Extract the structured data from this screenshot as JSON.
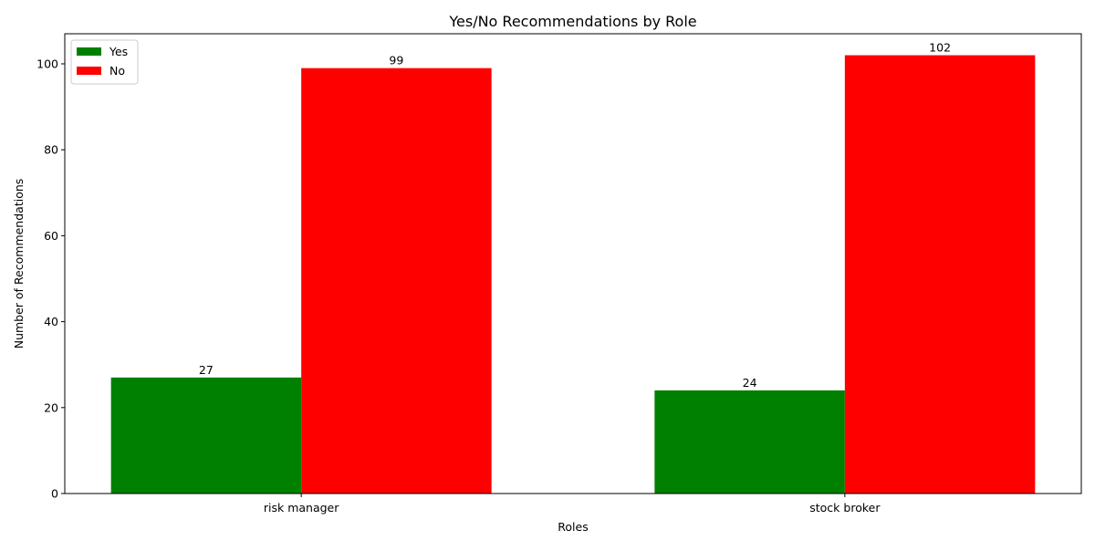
{
  "chart_data": {
    "type": "bar",
    "title": "Yes/No Recommendations by Role",
    "xlabel": "Roles",
    "ylabel": "Number of Recommendations",
    "categories": [
      "risk manager",
      "stock broker"
    ],
    "series": [
      {
        "name": "Yes",
        "values": [
          27,
          24
        ],
        "color": "#008000"
      },
      {
        "name": "No",
        "values": [
          99,
          102
        ],
        "color": "#ff0000"
      }
    ],
    "ylim": [
      0,
      107
    ],
    "yticks": [
      0,
      20,
      40,
      60,
      80,
      100
    ],
    "grid": false,
    "legend_position": "top-left",
    "show_data_labels": true
  }
}
